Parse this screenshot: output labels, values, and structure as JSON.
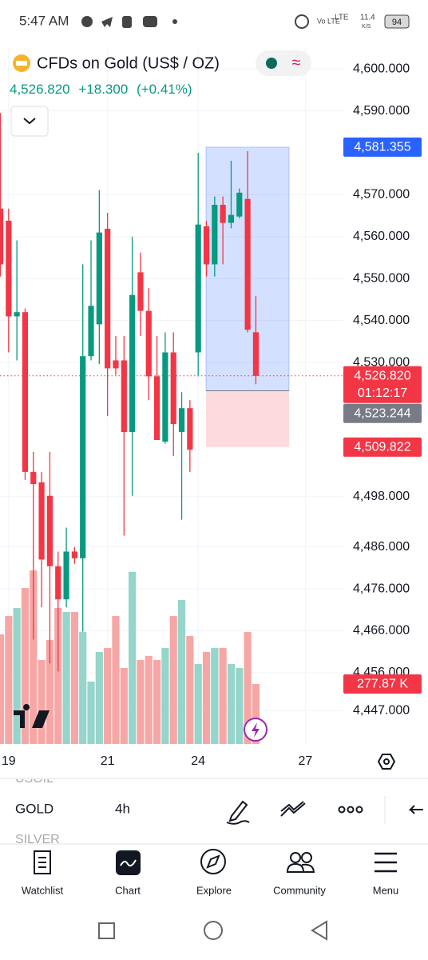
{
  "status_bar": {
    "time": "5:47 AM",
    "volte": "Vo LTE",
    "lte": "LTE",
    "speed": "11.4",
    "speed_unit": "K/S",
    "battery": "94"
  },
  "header": {
    "symbol": "CFDs on Gold (US$ / OZ)",
    "price": "4,526.820",
    "change": "+18.300",
    "change_pct": "(+0.41%)"
  },
  "chart_data": {
    "type": "candlestick",
    "open": [
      4566.7,
      4563.8,
      4541.0,
      4542.0,
      4503.9,
      4501.4,
      4498.2,
      4481.4,
      4473.5,
      4484.9,
      4483.3,
      4531.5,
      4539.1,
      4561.9,
      4530.5,
      4530.5,
      4513.4,
      4551.5,
      4542.3,
      4526.7,
      4511.1,
      4532.4,
      4513.4,
      4519.1,
      4532.4,
      4562.5,
      4553.4,
      4567.6,
      4563.3,
      4564.8,
      4569.0,
      4537.2
    ],
    "high": [
      4589.5,
      4566.7,
      4559.1,
      4542.9,
      4508.7,
      4503.9,
      4508.7,
      4484.9,
      4490.6,
      4486.0,
      4553.4,
      4559.1,
      4571.1,
      4565.7,
      4536.3,
      4536.3,
      4560.0,
      4556.2,
      4547.7,
      4536.3,
      4537.2,
      4537.2,
      4522.9,
      4521.0,
      4580.0,
      4563.8,
      4569.6,
      4569.6,
      4578.1,
      4571.5,
      4580.4,
      4545.8
    ],
    "low": [
      4550.5,
      4532.4,
      4530.5,
      4502.0,
      4463.9,
      4471.6,
      4458.2,
      4456.3,
      4471.6,
      4482.0,
      4465.8,
      4530.5,
      4529.6,
      4517.2,
      4527.0,
      4488.7,
      4498.2,
      4536.3,
      4521.0,
      4511.5,
      4510.6,
      4507.7,
      4492.5,
      4503.9,
      4526.7,
      4550.5,
      4550.5,
      4553.4,
      4562.0,
      4564.4,
      4537.2,
      4524.8
    ],
    "close": [
      4553.4,
      4541.0,
      4542.0,
      4503.9,
      4501.0,
      4483.0,
      4481.4,
      4473.5,
      4484.9,
      4483.3,
      4531.5,
      4543.5,
      4561.0,
      4528.6,
      4528.6,
      4513.4,
      4546.1,
      4542.3,
      4526.7,
      4511.5,
      4532.4,
      4515.3,
      4519.1,
      4509.2,
      4562.9,
      4553.4,
      4567.6,
      4563.3,
      4565.2,
      4570.5,
      4537.8,
      4526.8
    ],
    "volume": [
      508,
      593,
      630,
      722,
      804,
      389,
      482,
      630,
      611,
      611,
      519,
      289,
      426,
      445,
      593,
      352,
      797,
      389,
      408,
      389,
      445,
      593,
      667,
      500,
      371,
      426,
      445,
      445,
      371,
      352,
      519,
      277.87
    ],
    "vlim": [
      0,
      1000
    ],
    "up_color": "#089981",
    "down_color": "#f23645",
    "volume_up_color": "#95d5cb",
    "volume_down_color": "#f6a7a5",
    "ylim": [
      4439,
      4605
    ],
    "yticks": [
      {
        "value": 4600,
        "label": "4,600.000"
      },
      {
        "value": 4590,
        "label": "4,590.000"
      },
      {
        "value": 4570,
        "label": "4,570.000"
      },
      {
        "value": 4560,
        "label": "4,560.000"
      },
      {
        "value": 4550,
        "label": "4,550.000"
      },
      {
        "value": 4540,
        "label": "4,540.000"
      },
      {
        "value": 4530,
        "label": "4,530.000"
      },
      {
        "value": 4498,
        "label": "4,498.000"
      },
      {
        "value": 4486,
        "label": "4,486.000"
      },
      {
        "value": 4476,
        "label": "4,476.000"
      },
      {
        "value": 4466,
        "label": "4,466.000"
      },
      {
        "value": 4456,
        "label": "4,456.000"
      },
      {
        "value": 4447,
        "label": "4,447.000"
      }
    ],
    "xticks": [
      {
        "value": 1,
        "label": "19"
      },
      {
        "value": 13,
        "label": "21"
      },
      {
        "value": 24,
        "label": "24"
      },
      {
        "value": 37,
        "label": "27"
      }
    ],
    "grid": true,
    "price_tags": [
      {
        "value": 4581.355,
        "label": "4,581.355",
        "color": "#2962ff"
      },
      {
        "value": 4526.82,
        "label": "4,526.820",
        "sub": "01:12:17",
        "color": "#f23645"
      },
      {
        "value": 4523.244,
        "label": "4,523.244",
        "color": "#787b86"
      },
      {
        "value": 4509.822,
        "label": "4,509.822",
        "color": "#f23645"
      }
    ],
    "volume_tag": {
      "value": 277.87,
      "label": "277.87 K",
      "color": "#f23645"
    }
  },
  "toolbar": {
    "symbols": [
      "USOIL",
      "GOLD",
      "SILVER"
    ],
    "interval": "4h"
  },
  "nav": {
    "items": [
      "Watchlist",
      "Chart",
      "Explore",
      "Community",
      "Menu"
    ]
  }
}
